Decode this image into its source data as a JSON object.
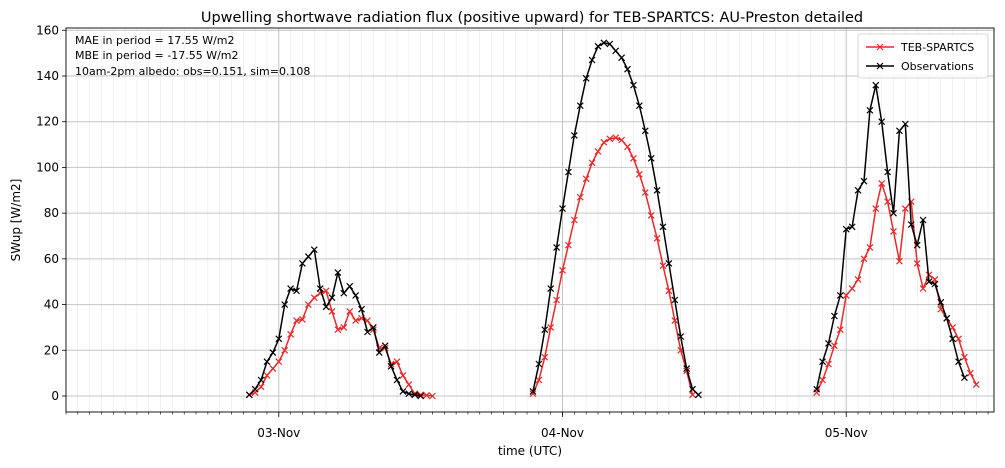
{
  "chart_data": {
    "type": "line",
    "title": "Upwelling shortwave radiation flux (positive upward) for TEB-SPARTCS: AU-Preston detailed",
    "xlabel": "time (UTC)",
    "ylabel": "SWup [W/m2]",
    "ylim": [
      -7,
      161
    ],
    "yticks": [
      0,
      20,
      40,
      60,
      80,
      100,
      120,
      140,
      160
    ],
    "xlim": [
      "2003-11-02 06:00",
      "2003-11-05 12:30"
    ],
    "xticks": [
      "03-Nov",
      "04-Nov",
      "05-Nov"
    ],
    "grid": true,
    "legend_position": "upper right",
    "annotations": [
      "MAE in period = 17.55 W/m2",
      "MBE in period = -17.55 W/m2",
      "10am-2pm albedo: obs=0.151, sim=0.108"
    ],
    "x": [
      "2003-11-02 21:30",
      "2003-11-02 22:00",
      "2003-11-02 22:30",
      "2003-11-02 23:00",
      "2003-11-02 23:30",
      "2003-11-03 00:00",
      "2003-11-03 00:30",
      "2003-11-03 01:00",
      "2003-11-03 01:30",
      "2003-11-03 02:00",
      "2003-11-03 02:30",
      "2003-11-03 03:00",
      "2003-11-03 03:30",
      "2003-11-03 04:00",
      "2003-11-03 04:30",
      "2003-11-03 05:00",
      "2003-11-03 05:30",
      "2003-11-03 06:00",
      "2003-11-03 06:30",
      "2003-11-03 07:00",
      "2003-11-03 07:30",
      "2003-11-03 08:00",
      "2003-11-03 08:30",
      "2003-11-03 09:00",
      "2003-11-03 09:30",
      "2003-11-03 10:00",
      "2003-11-03 10:30",
      "2003-11-03 11:00",
      "2003-11-03 11:30",
      "2003-11-03 12:00",
      "2003-11-03 12:30",
      "2003-11-03 13:00",
      "2003-11-03 13:30",
      "2003-11-03 14:00",
      "2003-11-03 21:30",
      "2003-11-03 22:00",
      "2003-11-03 22:30",
      "2003-11-03 23:00",
      "2003-11-03 23:30",
      "2003-11-04 00:00",
      "2003-11-04 00:30",
      "2003-11-04 01:00",
      "2003-11-04 01:30",
      "2003-11-04 02:00",
      "2003-11-04 02:30",
      "2003-11-04 03:00",
      "2003-11-04 03:30",
      "2003-11-04 04:00",
      "2003-11-04 04:30",
      "2003-11-04 05:00",
      "2003-11-04 05:30",
      "2003-11-04 06:00",
      "2003-11-04 06:30",
      "2003-11-04 07:00",
      "2003-11-04 07:30",
      "2003-11-04 08:00",
      "2003-11-04 08:30",
      "2003-11-04 09:00",
      "2003-11-04 09:30",
      "2003-11-04 10:00",
      "2003-11-04 10:30",
      "2003-11-04 11:00",
      "2003-11-04 11:30",
      "2003-11-04 12:00",
      "2003-11-04 12:30",
      "2003-11-04 13:00",
      "2003-11-04 13:30",
      "2003-11-04 14:00",
      "2003-11-04 21:30",
      "2003-11-04 22:00",
      "2003-11-04 22:30",
      "2003-11-04 23:00",
      "2003-11-04 23:30",
      "2003-11-05 00:00",
      "2003-11-05 00:30",
      "2003-11-05 01:00",
      "2003-11-05 01:30",
      "2003-11-05 02:00",
      "2003-11-05 02:30",
      "2003-11-05 03:00",
      "2003-11-05 03:30",
      "2003-11-05 04:00",
      "2003-11-05 04:30",
      "2003-11-05 05:00",
      "2003-11-05 05:30",
      "2003-11-05 06:00",
      "2003-11-05 06:30",
      "2003-11-05 07:00",
      "2003-11-05 07:30",
      "2003-11-05 08:00",
      "2003-11-05 08:30",
      "2003-11-05 09:00",
      "2003-11-05 09:30",
      "2003-11-05 10:00",
      "2003-11-05 10:30",
      "2003-11-05 11:00",
      "2003-11-05 11:30"
    ],
    "series": [
      {
        "name": "TEB-SPARTCS",
        "color": "#e8292a",
        "marker": "x",
        "segments": [
          [
            0.5,
            1.5,
            4,
            9,
            12,
            15,
            20,
            27,
            33,
            33.5,
            40,
            43,
            45,
            46,
            37,
            29,
            30,
            37,
            33,
            34,
            33,
            29,
            21,
            21,
            14,
            15,
            9,
            5,
            1,
            0.5,
            0.3,
            0
          ],
          [
            1,
            7,
            17,
            30,
            42,
            55,
            66,
            77,
            87,
            95,
            102,
            107,
            111,
            112.5,
            113,
            112,
            109,
            104,
            97,
            89,
            79,
            69,
            57,
            46,
            33,
            20,
            11,
            0.5
          ],
          [
            1.5,
            7,
            14,
            22,
            29,
            44,
            47,
            51,
            60,
            65,
            82,
            93,
            85,
            72,
            59,
            82,
            85,
            58,
            47,
            53,
            51,
            38,
            34,
            30,
            25,
            17,
            10,
            5
          ]
        ]
      },
      {
        "name": "Observations",
        "color": "#000000",
        "marker": "x",
        "segments": [
          [
            0.5,
            3,
            7,
            15,
            19,
            25,
            40,
            47,
            46,
            58,
            61,
            64,
            47,
            39,
            43,
            54,
            45,
            48,
            44,
            38,
            28,
            30,
            19,
            22,
            13,
            7,
            2,
            1,
            0.5,
            0
          ],
          [
            2,
            14,
            29,
            47,
            65,
            82,
            98,
            114,
            127,
            139,
            147,
            153,
            154.5,
            154,
            151,
            148,
            143,
            136,
            127,
            116,
            104,
            90,
            74,
            58,
            42,
            26,
            12,
            3,
            0.5
          ],
          [
            3,
            15,
            23,
            35,
            44,
            73,
            74,
            90,
            94,
            125,
            136,
            120,
            98,
            80,
            116,
            119,
            75,
            66,
            77,
            50,
            49,
            41,
            34,
            25,
            15,
            8
          ]
        ]
      }
    ]
  }
}
